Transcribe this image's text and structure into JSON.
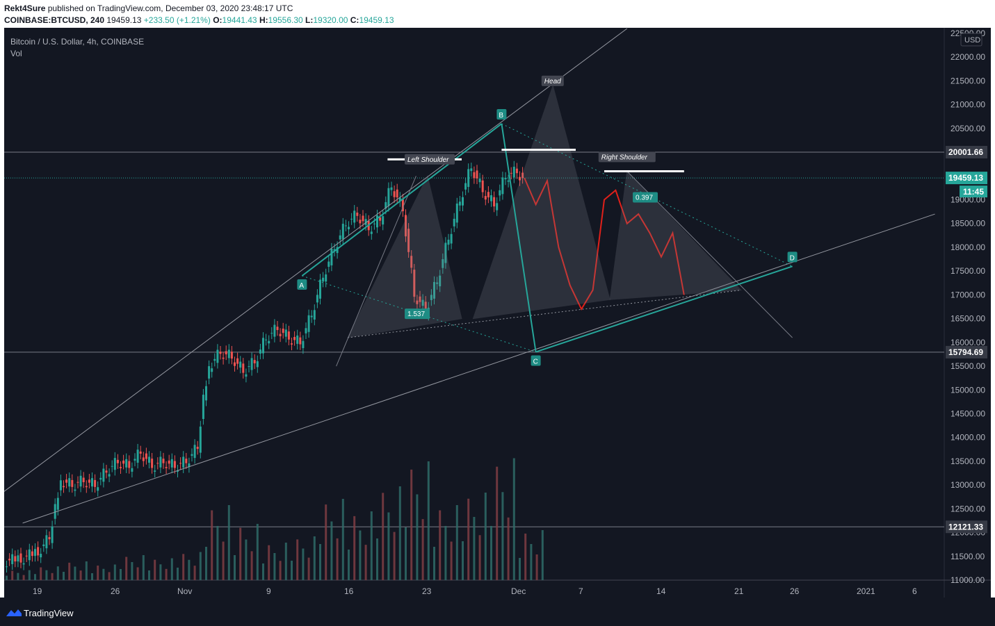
{
  "header": {
    "publisher": "Rekt4Sure",
    "published_text": "published on TradingView.com, December 03, 2020 23:48:17 UTC",
    "symbol": "COINBASE:BTCUSD, 240",
    "last": "19459.13",
    "change": "+233.50 (+1.21%)",
    "o_label": "O:",
    "o": "19441.43",
    "h_label": "H:",
    "h": "19556.30",
    "l_label": "L:",
    "l": "19320.00",
    "c_label": "C:",
    "c": "19459.13"
  },
  "legend": {
    "title": "Bitcoin / U.S. Dollar, 4h, COINBASE",
    "vol": "Vol"
  },
  "footer": {
    "brand": "TradingView"
  },
  "chart_data": {
    "type": "candlestick",
    "ylim": [
      11000,
      22500
    ],
    "currency": "USD",
    "y_ticks": [
      "11000.00",
      "11500.00",
      "12000.00",
      "12500.00",
      "13000.00",
      "13500.00",
      "14000.00",
      "14500.00",
      "15000.00",
      "15500.00",
      "16000.00",
      "16500.00",
      "17000.00",
      "17500.00",
      "18000.00",
      "18500.00",
      "19000.00",
      "19500.00",
      "20000.00",
      "20500.00",
      "21000.00",
      "21500.00",
      "22000.00",
      "22500.00"
    ],
    "x_ticks": [
      "19",
      "26",
      "Nov",
      "9",
      "16",
      "23",
      "Dec",
      "7",
      "14",
      "21",
      "26",
      "2021",
      "6"
    ],
    "price_levels": [
      {
        "label": "20001.66",
        "value": 20001.66
      },
      {
        "label": "15794.69",
        "value": 15794.69
      },
      {
        "label": "12121.33",
        "value": 12121.33
      }
    ],
    "last_price": {
      "label": "19459.13",
      "value": 19459.13,
      "countdown": "11:45"
    },
    "annotations": {
      "head": "Head",
      "left_shoulder": "Left Shoulder",
      "right_shoulder": "Right Shoulder",
      "points": [
        "A",
        "B",
        "C",
        "D"
      ],
      "ratio_1": "1.537",
      "ratio_2": "0.397"
    },
    "price_path": [
      [
        0,
        11400
      ],
      [
        3,
        11450
      ],
      [
        6,
        11600
      ],
      [
        8,
        11900
      ],
      [
        9,
        12600
      ],
      [
        10,
        13100
      ],
      [
        12,
        13000
      ],
      [
        14,
        13100
      ],
      [
        16,
        13000
      ],
      [
        18,
        13300
      ],
      [
        20,
        13500
      ],
      [
        22,
        13400
      ],
      [
        24,
        13700
      ],
      [
        26,
        13400
      ],
      [
        28,
        13500
      ],
      [
        30,
        13400
      ],
      [
        32,
        13500
      ],
      [
        34,
        13800
      ],
      [
        35,
        14900
      ],
      [
        36,
        15500
      ],
      [
        38,
        15800
      ],
      [
        40,
        15700
      ],
      [
        42,
        15400
      ],
      [
        44,
        15600
      ],
      [
        46,
        16100
      ],
      [
        48,
        16300
      ],
      [
        50,
        16100
      ],
      [
        52,
        16000
      ],
      [
        54,
        16600
      ],
      [
        56,
        17400
      ],
      [
        58,
        18000
      ],
      [
        60,
        18500
      ],
      [
        62,
        18700
      ],
      [
        64,
        18400
      ],
      [
        66,
        18600
      ],
      [
        68,
        19300
      ],
      [
        70,
        18800
      ],
      [
        72,
        17000
      ],
      [
        74,
        16700
      ],
      [
        76,
        17300
      ],
      [
        78,
        18200
      ],
      [
        80,
        19000
      ],
      [
        82,
        19700
      ],
      [
        84,
        19200
      ],
      [
        86,
        18900
      ],
      [
        88,
        19500
      ],
      [
        90,
        19600
      ],
      [
        91,
        19459
      ]
    ],
    "projection_path": [
      [
        91,
        19459
      ],
      [
        93,
        18900
      ],
      [
        95,
        19400
      ],
      [
        97,
        18000
      ],
      [
        99,
        17200
      ],
      [
        101,
        16700
      ],
      [
        103,
        17100
      ],
      [
        105,
        19000
      ],
      [
        107,
        19200
      ],
      [
        109,
        18500
      ],
      [
        111,
        18700
      ],
      [
        113,
        18300
      ],
      [
        115,
        17800
      ],
      [
        117,
        18300
      ],
      [
        119,
        17000
      ]
    ],
    "volume": [
      {
        "day": 0,
        "value": 16
      },
      {
        "day": 5,
        "value": 22
      },
      {
        "day": 10,
        "value": 30
      },
      {
        "day": 15,
        "value": 25
      },
      {
        "day": 20,
        "value": 40
      },
      {
        "day": 25,
        "value": 35
      },
      {
        "day": 30,
        "value": 45
      },
      {
        "day": 35,
        "value": 120
      },
      {
        "day": 40,
        "value": 90
      },
      {
        "day": 45,
        "value": 60
      },
      {
        "day": 50,
        "value": 70
      },
      {
        "day": 55,
        "value": 130
      },
      {
        "day": 60,
        "value": 110
      },
      {
        "day": 65,
        "value": 150
      },
      {
        "day": 70,
        "value": 190
      },
      {
        "day": 75,
        "value": 120
      },
      {
        "day": 80,
        "value": 140
      },
      {
        "day": 85,
        "value": 195
      },
      {
        "day": 90,
        "value": 80
      }
    ]
  }
}
